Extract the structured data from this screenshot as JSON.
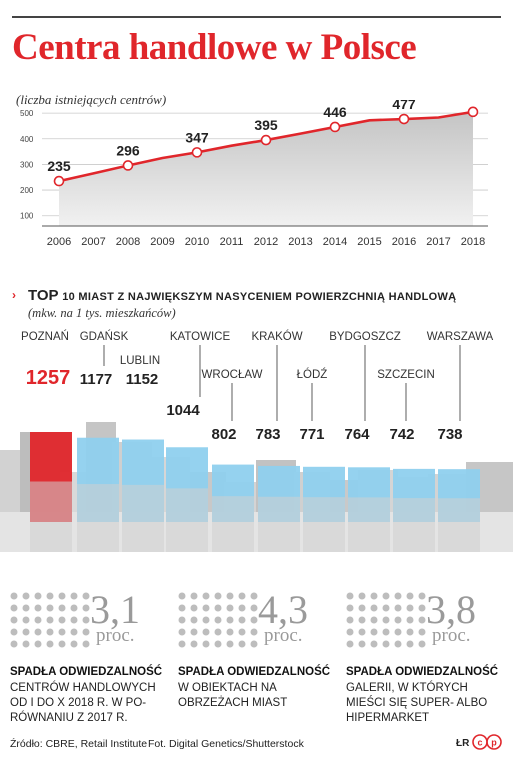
{
  "title": "Centra handlowe w Polsce",
  "subtitle": "(liczba istniejących centrów)",
  "section2": {
    "title_big": "TOP",
    "title_rest": "10 MIAST Z NAJWIĘKSZYM NASYCENIEM POWIERZCHNIĄ HANDLOWĄ",
    "subtitle": "(mkw. na 1 tys. mieszkańców)"
  },
  "colors": {
    "brand_red": "#e0262b",
    "bar_blue": "#8fd0ee",
    "gray": "#9a9a9a"
  },
  "stats": [
    {
      "value": "3,1",
      "unit": "proc.",
      "head": "SPADŁA ODWIEDZALNOŚĆ",
      "lines": [
        "CENTRÓW HANDLOWYCH",
        "OD I DO X 2018 R. W PO-",
        "RÓWNANIU Z 2017 R."
      ]
    },
    {
      "value": "4,3",
      "unit": "proc.",
      "head": "SPADŁA ODWIEDZALNOŚĆ",
      "lines": [
        "W OBIEKTACH NA",
        "OBRZEŻACH MIAST"
      ]
    },
    {
      "value": "3,8",
      "unit": "proc.",
      "head": "SPADŁA ODWIEDZALNOŚĆ",
      "lines": [
        "GALERII, W KTÓRYCH",
        "MIEŚCI SIĘ SUPER- ALBO",
        "HIPERMARKET"
      ]
    }
  ],
  "footer": {
    "source": "Źródło: CBRE, Retail Institute",
    "photo": "Fot. Digital Genetics/Shutterstock",
    "initials": "ŁR",
    "logo_icon": "rp-logo-icon"
  },
  "chart_data": [
    {
      "type": "line",
      "x": [
        "2006",
        "2007",
        "2008",
        "2009",
        "2010",
        "2011",
        "2012",
        "2013",
        "2014",
        "2015",
        "2016",
        "2017",
        "2018"
      ],
      "values": [
        235,
        265,
        296,
        325,
        347,
        373,
        395,
        420,
        446,
        472,
        477,
        483,
        505
      ],
      "labeled": [
        235,
        null,
        296,
        null,
        347,
        null,
        395,
        null,
        446,
        null,
        477,
        null,
        505
      ],
      "yticks": [
        100,
        200,
        300,
        400,
        500
      ],
      "ylim": [
        60,
        520
      ],
      "highlight_last": true
    },
    {
      "type": "bar",
      "categories": [
        "POZNAŃ",
        "GDAŃSK",
        "LUBLIN",
        "KATOWICE",
        "WROCŁAW",
        "KRAKÓW",
        "ŁÓDŹ",
        "BYDGOSZCZ",
        "SZCZECIN",
        "WARSZAWA"
      ],
      "values": [
        1257,
        1177,
        1152,
        1044,
        802,
        783,
        771,
        764,
        742,
        738
      ],
      "highlight": "POZNAŃ"
    }
  ]
}
